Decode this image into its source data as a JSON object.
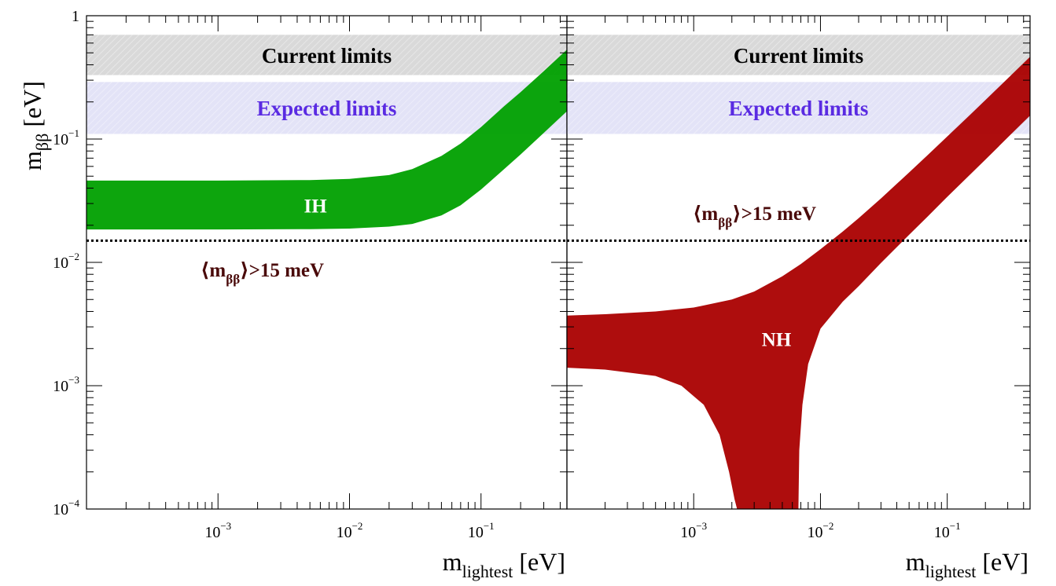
{
  "chart_data": [
    {
      "type": "area",
      "panel": "left",
      "xscale": "log",
      "yscale": "log",
      "xlim": [
        0.0001,
        0.45
      ],
      "ylim": [
        0.0001,
        1
      ],
      "xlabel": "m_lightest [eV]",
      "ylabel": "m_ββ [eV]",
      "bands": [
        {
          "label": "Current limits",
          "ymin": 0.33,
          "ymax": 0.7,
          "color": "#d9d9d9"
        },
        {
          "label": "Expected limits",
          "ymin": 0.11,
          "ymax": 0.29,
          "color": "#e3e3f7"
        }
      ],
      "threshold": {
        "label": "⟨m_ββ⟩>15 meV",
        "y": 0.015
      },
      "series": [
        {
          "name": "IH",
          "color": "#00a000",
          "x": [
            0.0001,
            0.001,
            0.005,
            0.01,
            0.02,
            0.03,
            0.05,
            0.07,
            0.1,
            0.15,
            0.2,
            0.3,
            0.45
          ],
          "y_low": [
            0.0185,
            0.0185,
            0.0186,
            0.0188,
            0.0195,
            0.0205,
            0.024,
            0.029,
            0.039,
            0.057,
            0.075,
            0.112,
            0.168
          ],
          "y_high": [
            0.046,
            0.046,
            0.0465,
            0.0475,
            0.051,
            0.057,
            0.073,
            0.092,
            0.125,
            0.185,
            0.24,
            0.355,
            0.53
          ]
        }
      ]
    },
    {
      "type": "area",
      "panel": "right",
      "xscale": "log",
      "yscale": "log",
      "xlim": [
        0.0001,
        0.45
      ],
      "ylim": [
        0.0001,
        1
      ],
      "xlabel": "m_lightest [eV]",
      "ylabel": "",
      "bands": [
        {
          "label": "Current limits",
          "ymin": 0.33,
          "ymax": 0.7,
          "color": "#d9d9d9"
        },
        {
          "label": "Expected limits",
          "ymin": 0.11,
          "ymax": 0.29,
          "color": "#e3e3f7"
        }
      ],
      "threshold": {
        "label": "⟨m_ββ⟩>15 meV",
        "y": 0.015
      },
      "series": [
        {
          "name": "NH",
          "color": "#aa0000",
          "x_upper": [
            0.0001,
            0.0002,
            0.0005,
            0.001,
            0.002,
            0.003,
            0.005,
            0.007,
            0.01,
            0.015,
            0.02,
            0.03,
            0.05,
            0.07,
            0.1,
            0.15,
            0.2,
            0.3,
            0.45
          ],
          "y_upper": [
            0.0037,
            0.0038,
            0.004,
            0.0043,
            0.005,
            0.0058,
            0.0077,
            0.0097,
            0.0128,
            0.0178,
            0.0228,
            0.033,
            0.0535,
            0.074,
            0.105,
            0.156,
            0.207,
            0.31,
            0.465
          ],
          "x_lower": [
            0.0001,
            0.0002,
            0.0005,
            0.0008,
            0.0012,
            0.0016,
            0.0019,
            0.0021,
            0.0022,
            0.0067,
            0.0068,
            0.0072,
            0.008,
            0.01,
            0.015,
            0.02,
            0.03,
            0.05,
            0.07,
            0.1,
            0.15,
            0.2,
            0.3,
            0.45
          ],
          "y_lower": [
            0.0014,
            0.00135,
            0.0012,
            0.001,
            0.0007,
            0.0004,
            0.0002,
            0.00012,
            0.0001,
            0.0001,
            0.0003,
            0.0007,
            0.0015,
            0.0029,
            0.0048,
            0.0064,
            0.0099,
            0.0167,
            0.0235,
            0.034,
            0.051,
            0.068,
            0.103,
            0.155
          ]
        }
      ]
    }
  ],
  "labels": {
    "current_limits": "Current limits",
    "expected_limits": "Expected limits",
    "threshold_open": "⟨m",
    "threshold_sub": "ββ",
    "threshold_close": "⟩>15 meV",
    "ih": "IH",
    "nh": "NH",
    "y_axis_main": "m",
    "y_axis_sub": "ββ",
    "y_axis_unit": " [eV]",
    "x_axis_main": "m",
    "x_axis_sub": "lightest",
    "x_axis_unit": " [eV]"
  },
  "y_ticks": [
    {
      "value": 1,
      "label": "1"
    },
    {
      "value": 0.1,
      "base": "10",
      "exp": "−1"
    },
    {
      "value": 0.01,
      "base": "10",
      "exp": "−2"
    },
    {
      "value": 0.001,
      "base": "10",
      "exp": "−3"
    },
    {
      "value": 0.0001,
      "base": "10",
      "exp": "−4"
    }
  ],
  "x_ticks": [
    {
      "value": 0.001,
      "base": "10",
      "exp": "−3"
    },
    {
      "value": 0.01,
      "base": "10",
      "exp": "−2"
    },
    {
      "value": 0.1,
      "base": "10",
      "exp": "−1"
    }
  ],
  "colors": {
    "ih": "#00a000",
    "nh": "#aa0000",
    "current_band": "#d9d9d9",
    "expected_band": "#e3e3f7",
    "current_text": "#000000",
    "expected_text": "#5a2be2",
    "threshold_text": "#4a0a0a"
  }
}
